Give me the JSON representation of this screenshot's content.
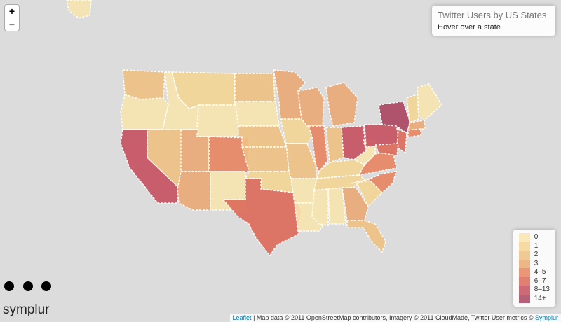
{
  "info": {
    "title": "Twitter Users by US States",
    "subtitle": "Hover over a state"
  },
  "zoom": {
    "in": "+",
    "out": "−"
  },
  "legend": {
    "items": [
      {
        "label": "0",
        "color": "#f7e4ae"
      },
      {
        "label": "1",
        "color": "#f3d593"
      },
      {
        "label": "2",
        "color": "#eec083"
      },
      {
        "label": "3",
        "color": "#e9a974"
      },
      {
        "label": "4–5",
        "color": "#e6845f"
      },
      {
        "label": "6–7",
        "color": "#dc6959"
      },
      {
        "label": "8–13",
        "color": "#c5505e"
      },
      {
        "label": "14+",
        "color": "#a8445e"
      }
    ]
  },
  "attribution": {
    "leaflet": "Leaflet",
    "text": " | Map data © 2011 OpenStreetMap contributors, Imagery © 2011 CloudMade, Twitter User metrics © ",
    "symplur": "Symplur"
  },
  "brand": "symplur"
}
